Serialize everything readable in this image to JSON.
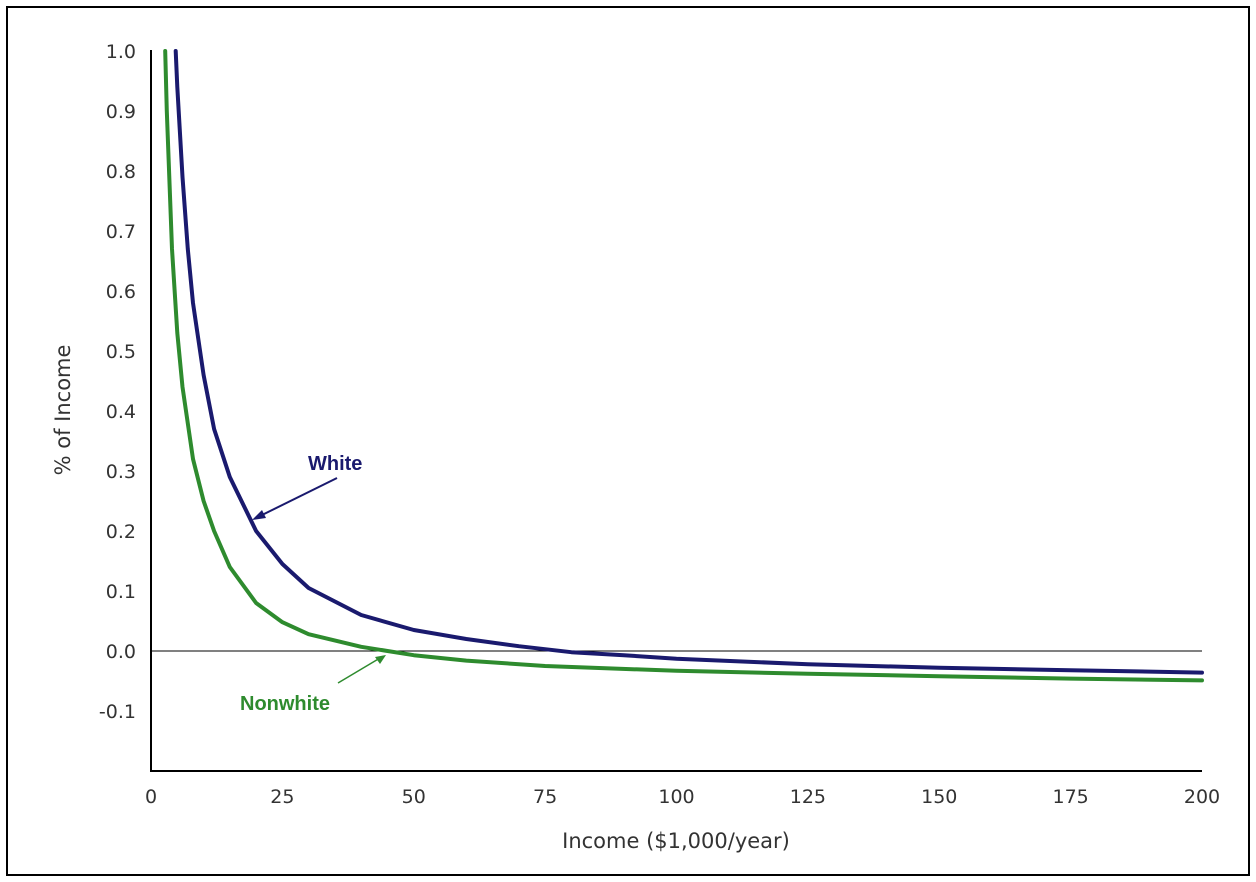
{
  "chart_data": {
    "type": "line",
    "title": "",
    "xlabel": "Income ($1,000/year)",
    "ylabel": "% of Income",
    "xlim": [
      0,
      200
    ],
    "ylim": [
      -0.2,
      1.0
    ],
    "x_ticks": [
      "0",
      "25",
      "50",
      "75",
      "100",
      "125",
      "150",
      "175",
      "200"
    ],
    "y_ticks": [
      "1.0",
      "0.9",
      "0.8",
      "0.7",
      "0.6",
      "0.5",
      "0.4",
      "0.3",
      "0.2",
      "0.1",
      "0.0",
      "-0.1"
    ],
    "grid": false,
    "series": [
      {
        "name": "White",
        "color": "#1a1a6e",
        "points": [
          [
            4.7,
            1.0
          ],
          [
            5,
            0.94
          ],
          [
            6,
            0.79
          ],
          [
            7,
            0.67
          ],
          [
            8,
            0.58
          ],
          [
            10,
            0.46
          ],
          [
            12,
            0.37
          ],
          [
            15,
            0.29
          ],
          [
            20,
            0.2
          ],
          [
            25,
            0.145
          ],
          [
            30,
            0.105
          ],
          [
            40,
            0.06
          ],
          [
            50,
            0.035
          ],
          [
            60,
            0.02
          ],
          [
            70,
            0.008
          ],
          [
            80,
            -0.002
          ],
          [
            90,
            -0.007
          ],
          [
            100,
            -0.013
          ],
          [
            125,
            -0.022
          ],
          [
            150,
            -0.028
          ],
          [
            175,
            -0.032
          ],
          [
            200,
            -0.036
          ]
        ]
      },
      {
        "name": "Nonwhite",
        "color": "#2e8b2e",
        "points": [
          [
            2.7,
            1.0
          ],
          [
            3,
            0.9
          ],
          [
            4,
            0.67
          ],
          [
            5,
            0.53
          ],
          [
            6,
            0.44
          ],
          [
            8,
            0.32
          ],
          [
            10,
            0.25
          ],
          [
            12,
            0.2
          ],
          [
            15,
            0.14
          ],
          [
            20,
            0.08
          ],
          [
            25,
            0.048
          ],
          [
            30,
            0.028
          ],
          [
            40,
            0.007
          ],
          [
            45,
            0.0
          ],
          [
            50,
            -0.007
          ],
          [
            60,
            -0.016
          ],
          [
            75,
            -0.025
          ],
          [
            100,
            -0.033
          ],
          [
            125,
            -0.038
          ],
          [
            150,
            -0.042
          ],
          [
            175,
            -0.046
          ],
          [
            200,
            -0.049
          ]
        ]
      }
    ],
    "annotations": [
      {
        "text": "White",
        "color": "#1a1a6e"
      },
      {
        "text": "Nonwhite",
        "color": "#2e8b2e"
      }
    ]
  }
}
